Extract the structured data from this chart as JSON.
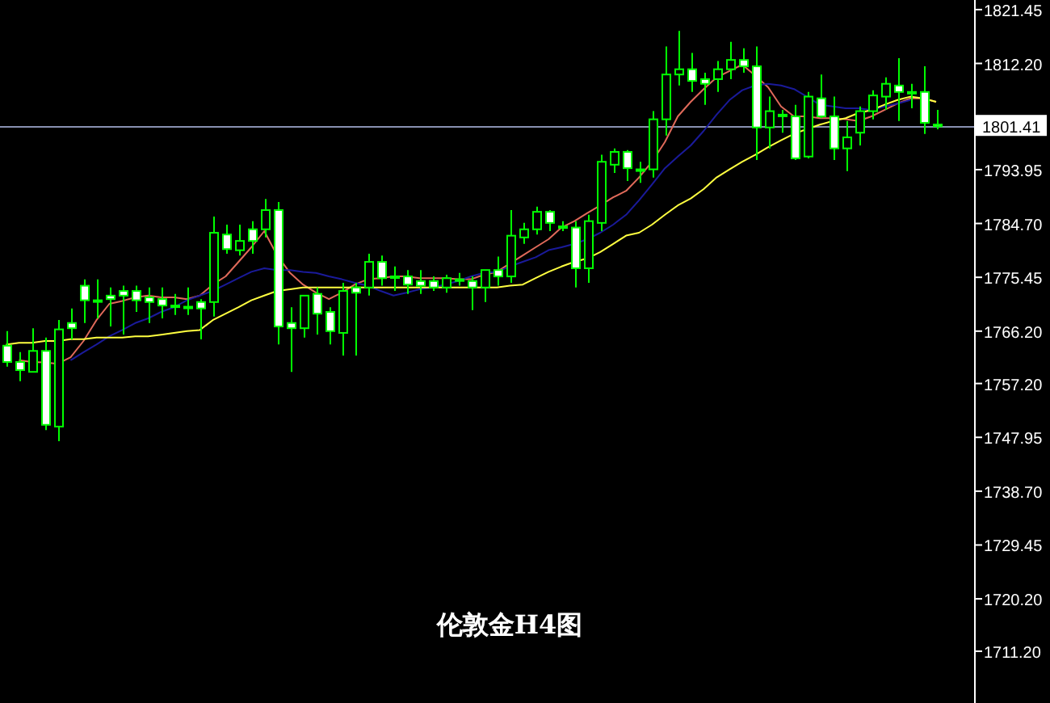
{
  "chart_data": {
    "type": "candlestick",
    "title": "伦敦金H4图",
    "categories": [
      null,
      null,
      null,
      null,
      null,
      null,
      null,
      null,
      null,
      null,
      null,
      null,
      null,
      null,
      null,
      null,
      null,
      null,
      null,
      null,
      null,
      null,
      null,
      null,
      null,
      null,
      null,
      null,
      null,
      null,
      null,
      null,
      null,
      null,
      null,
      null,
      null,
      null,
      null,
      null,
      null,
      null,
      null,
      null,
      null,
      null,
      null,
      null,
      null,
      null,
      null,
      null,
      null,
      null,
      null,
      null,
      null,
      null,
      null,
      null,
      null,
      null,
      null,
      null,
      null,
      null,
      null,
      null,
      null,
      null,
      null,
      null,
      null
    ],
    "ohlc": [
      [
        1763.7,
        1766.2,
        1760.1,
        1760.9
      ],
      [
        1760.9,
        1762.6,
        1757.6,
        1759.5
      ],
      [
        1759.2,
        1766.7,
        1759.2,
        1762.8
      ],
      [
        1762.8,
        1765.1,
        1749.2,
        1750.1
      ],
      [
        1749.8,
        1768.1,
        1747.3,
        1766.5
      ],
      [
        1767.6,
        1770.1,
        1764.8,
        1766.7
      ],
      [
        1774.0,
        1775.1,
        1767.6,
        1771.5
      ],
      [
        1771.5,
        1775.1,
        1768.4,
        1771.4
      ],
      [
        1772.3,
        1773.7,
        1767.0,
        1771.7
      ],
      [
        1773.1,
        1774.0,
        1765.6,
        1772.3
      ],
      [
        1773.1,
        1774.0,
        1769.5,
        1771.5
      ],
      [
        1772.0,
        1773.7,
        1767.6,
        1771.2
      ],
      [
        1771.7,
        1773.7,
        1768.4,
        1770.6
      ],
      [
        1770.6,
        1772.6,
        1769.0,
        1770.5
      ],
      [
        1770.3,
        1773.7,
        1769.0,
        1770.4
      ],
      [
        1771.2,
        1771.7,
        1764.8,
        1770.1
      ],
      [
        1771.2,
        1785.9,
        1768.7,
        1783.1
      ],
      [
        1782.8,
        1784.5,
        1779.5,
        1780.3
      ],
      [
        1780.1,
        1784.5,
        1779.2,
        1781.7
      ],
      [
        1783.7,
        1785.1,
        1779.5,
        1781.7
      ],
      [
        1783.7,
        1788.9,
        1782.3,
        1787.0
      ],
      [
        1787.0,
        1788.4,
        1763.9,
        1767.0
      ],
      [
        1767.6,
        1770.3,
        1759.2,
        1766.7
      ],
      [
        1766.7,
        1772.3,
        1765.1,
        1772.3
      ],
      [
        1772.6,
        1773.7,
        1765.6,
        1769.2
      ],
      [
        1769.5,
        1770.3,
        1763.9,
        1766.2
      ],
      [
        1765.9,
        1774.5,
        1762.0,
        1773.1
      ],
      [
        1773.7,
        1774.5,
        1762.0,
        1772.8
      ],
      [
        1773.7,
        1779.5,
        1772.3,
        1778.1
      ],
      [
        1778.1,
        1779.2,
        1774.0,
        1775.3
      ],
      [
        1775.6,
        1777.3,
        1773.1,
        1775.5
      ],
      [
        1775.6,
        1776.7,
        1772.6,
        1774.2
      ],
      [
        1774.8,
        1776.7,
        1772.6,
        1774.0
      ],
      [
        1774.8,
        1775.6,
        1773.1,
        1773.7
      ],
      [
        1773.7,
        1775.9,
        1772.8,
        1775.3
      ],
      [
        1775.1,
        1776.2,
        1774.0,
        1775.0
      ],
      [
        1774.8,
        1775.6,
        1769.8,
        1773.7
      ],
      [
        1773.7,
        1776.7,
        1771.2,
        1776.7
      ],
      [
        1776.7,
        1779.0,
        1774.0,
        1775.6
      ],
      [
        1775.6,
        1787.0,
        1774.5,
        1782.6
      ],
      [
        1782.3,
        1784.8,
        1781.2,
        1783.7
      ],
      [
        1783.7,
        1787.6,
        1782.8,
        1786.7
      ],
      [
        1786.7,
        1787.0,
        1783.4,
        1784.8
      ],
      [
        1784.2,
        1785.1,
        1783.4,
        1784.1
      ],
      [
        1784.0,
        1785.1,
        1773.7,
        1777.0
      ],
      [
        1777.0,
        1786.2,
        1774.5,
        1785.1
      ],
      [
        1784.8,
        1796.5,
        1783.4,
        1795.3
      ],
      [
        1794.8,
        1797.6,
        1793.4,
        1797.0
      ],
      [
        1797.0,
        1797.3,
        1792.0,
        1794.2
      ],
      [
        1794.0,
        1795.3,
        1791.7,
        1793.9
      ],
      [
        1794.0,
        1804.0,
        1792.6,
        1802.6
      ],
      [
        1802.6,
        1815.1,
        1799.8,
        1810.3
      ],
      [
        1810.3,
        1817.8,
        1808.4,
        1811.2
      ],
      [
        1811.2,
        1814.0,
        1807.3,
        1809.2
      ],
      [
        1809.5,
        1810.6,
        1805.1,
        1808.7
      ],
      [
        1809.5,
        1812.6,
        1807.3,
        1811.2
      ],
      [
        1811.2,
        1815.9,
        1809.5,
        1812.8
      ],
      [
        1812.8,
        1814.8,
        1810.6,
        1811.7
      ],
      [
        1811.7,
        1815.1,
        1795.6,
        1801.2
      ],
      [
        1801.2,
        1806.5,
        1797.6,
        1804.0
      ],
      [
        1803.4,
        1804.2,
        1800.3,
        1803.3
      ],
      [
        1803.1,
        1805.1,
        1795.6,
        1795.9
      ],
      [
        1796.2,
        1807.3,
        1795.9,
        1806.5
      ],
      [
        1806.2,
        1810.3,
        1802.8,
        1803.1
      ],
      [
        1803.1,
        1806.5,
        1795.6,
        1797.6
      ],
      [
        1797.6,
        1802.3,
        1793.7,
        1799.5
      ],
      [
        1800.3,
        1804.8,
        1798.1,
        1804.0
      ],
      [
        1804.0,
        1807.6,
        1802.6,
        1806.7
      ],
      [
        1806.5,
        1809.8,
        1804.2,
        1808.7
      ],
      [
        1808.4,
        1813.1,
        1802.3,
        1807.3
      ],
      [
        1807.3,
        1808.7,
        1804.5,
        1807.2
      ],
      [
        1807.3,
        1811.7,
        1800.1,
        1802.0
      ],
      [
        1801.7,
        1804.2,
        1800.9,
        1801.4
      ]
    ],
    "color": "#00ff00",
    "series": [
      {
        "type": "line",
        "color": "#e06a5a",
        "values": [
          null,
          1761.2,
          1760.9,
          1760.8,
          1760.6,
          1761.7,
          1764.5,
          1768.1,
          1770.9,
          1771.4,
          1772.0,
          1772.3,
          1772.0,
          1772.0,
          1771.7,
          1772.3,
          1774.2,
          1775.6,
          1778.1,
          1780.6,
          1783.4,
          1779.2,
          1776.2,
          1774.2,
          1772.8,
          1771.7,
          1772.8,
          1774.2,
          1775.1,
          1775.3,
          1775.6,
          1775.6,
          1775.3,
          1775.3,
          1775.3,
          1775.1,
          1775.1,
          1775.9,
          1776.4,
          1777.8,
          1779.2,
          1780.6,
          1782.0,
          1784.0,
          1785.1,
          1786.5,
          1787.8,
          1789.2,
          1790.3,
          1792.6,
          1795.3,
          1798.7,
          1803.1,
          1805.6,
          1807.8,
          1809.8,
          1810.9,
          1812.0,
          1810.1,
          1808.1,
          1804.8,
          1803.1,
          1803.1,
          1802.8,
          1802.8,
          1802.6,
          1802.3,
          1803.1,
          1804.2,
          1805.3,
          1806.2,
          1806.2,
          1805.6
        ]
      },
      {
        "type": "line",
        "color": "#1a1a9a",
        "values": [
          null,
          null,
          null,
          null,
          null,
          1761.2,
          1762.6,
          1763.9,
          1765.3,
          1766.4,
          1767.6,
          1768.4,
          1769.5,
          1770.3,
          1771.5,
          1772.3,
          1773.1,
          1774.2,
          1775.3,
          1776.4,
          1777.0,
          1776.7,
          1776.7,
          1776.4,
          1776.2,
          1775.6,
          1775.1,
          1774.5,
          1774.0,
          1773.1,
          1772.3,
          1772.8,
          1773.4,
          1773.7,
          1774.2,
          1774.8,
          1775.6,
          1776.2,
          1776.4,
          1777.3,
          1778.1,
          1778.9,
          1780.1,
          1780.6,
          1781.2,
          1782.0,
          1783.1,
          1784.5,
          1786.2,
          1788.7,
          1791.4,
          1794.2,
          1796.2,
          1798.1,
          1800.6,
          1803.4,
          1805.9,
          1807.6,
          1808.4,
          1808.7,
          1808.4,
          1807.8,
          1806.5,
          1805.1,
          1804.8,
          1804.5,
          1804.5,
          1804.2,
          1804.8,
          1805.3,
          1805.9,
          null,
          null
        ]
      },
      {
        "type": "line",
        "color": "#ffff40",
        "values": [
          1763.9,
          1764.2,
          1764.2,
          1764.5,
          1764.5,
          1764.8,
          1764.8,
          1765.1,
          1765.1,
          1765.1,
          1765.3,
          1765.3,
          1765.6,
          1765.9,
          1766.2,
          1766.4,
          1768.1,
          1769.2,
          1770.3,
          1771.5,
          1772.3,
          1773.1,
          1773.4,
          1773.7,
          1773.7,
          1773.7,
          1773.7,
          1773.7,
          1773.7,
          1773.7,
          1773.7,
          1773.7,
          1773.7,
          1773.7,
          1773.7,
          1773.7,
          1773.7,
          1773.7,
          1773.7,
          1774.0,
          1774.2,
          1775.3,
          1776.4,
          1777.3,
          1778.1,
          1778.7,
          1779.8,
          1781.2,
          1782.6,
          1783.1,
          1784.5,
          1786.2,
          1787.8,
          1789.0,
          1790.6,
          1792.6,
          1794.0,
          1795.3,
          1796.5,
          1797.8,
          1799.0,
          1800.1,
          1800.9,
          1801.7,
          1802.3,
          1802.8,
          1803.7,
          1804.2,
          1805.1,
          1805.9,
          1806.5,
          1806.2,
          1805.6
        ]
      }
    ],
    "ylim": [
      1702.3,
      1823.1
    ],
    "yticks": [
      {
        "value": 1821.45,
        "label": "1821.45"
      },
      {
        "value": 1812.2,
        "label": "1812.20"
      },
      {
        "value": 1793.95,
        "label": "1793.95"
      },
      {
        "value": 1784.7,
        "label": "1784.70"
      },
      {
        "value": 1775.45,
        "label": "1775.45"
      },
      {
        "value": 1766.2,
        "label": "1766.20"
      },
      {
        "value": 1757.2,
        "label": "1757.20"
      },
      {
        "value": 1747.95,
        "label": "1747.95"
      },
      {
        "value": 1738.7,
        "label": "1738.70"
      },
      {
        "value": 1729.45,
        "label": "1729.45"
      },
      {
        "value": 1720.2,
        "label": "1720.20"
      },
      {
        "value": 1711.2,
        "label": "1711.20"
      }
    ],
    "ref_lines": [
      {
        "axis": "y",
        "value": 1801.41,
        "label": "1801.41",
        "color": "#8890b0"
      }
    ],
    "tick_labels": "y"
  }
}
